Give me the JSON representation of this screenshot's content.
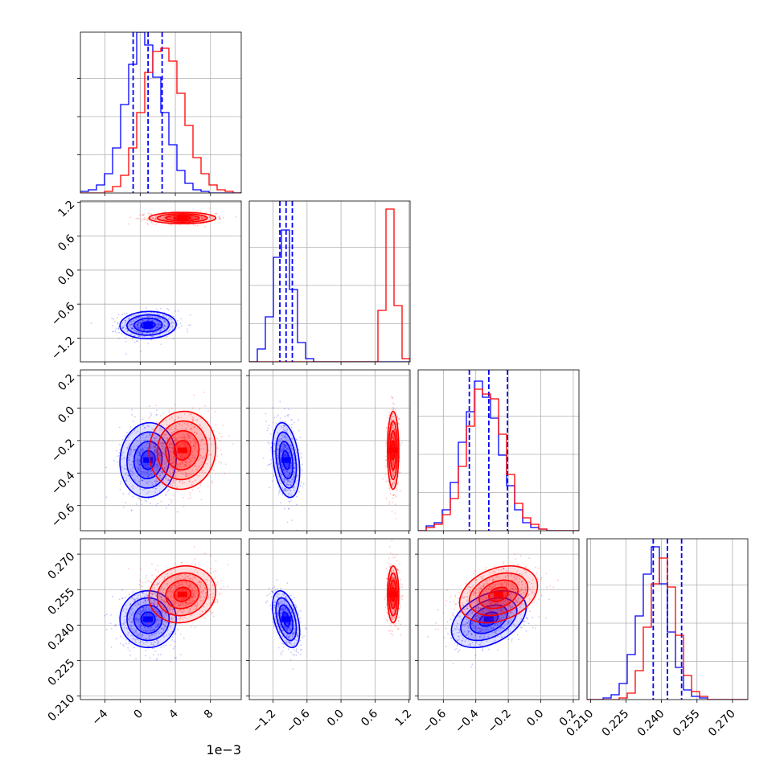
{
  "chart_data": {
    "type": "corner",
    "parameters": [
      {
        "id": "p0",
        "label": "",
        "range": [
          -6.8,
          11.5
        ],
        "ticks": [
          -4,
          0,
          4,
          8
        ],
        "tick_labels": [
          "−4",
          "0",
          "4",
          "8"
        ],
        "offset_text": "1e−3"
      },
      {
        "id": "p1",
        "label": "",
        "range": [
          -1.62,
          1.22
        ],
        "ticks": [
          -1.2,
          -0.6,
          0.0,
          0.6,
          1.2
        ],
        "tick_labels": [
          "−1.2",
          "−0.6",
          "0.0",
          "0.6",
          "1.2"
        ]
      },
      {
        "id": "p2",
        "label": "",
        "range": [
          -0.755,
          0.235
        ],
        "ticks": [
          -0.6,
          -0.4,
          -0.2,
          0.0,
          0.2
        ],
        "tick_labels": [
          "−0.6",
          "−0.4",
          "−0.2",
          "0.0",
          "0.2"
        ]
      },
      {
        "id": "p3",
        "label": "",
        "range": [
          0.2085,
          0.2765
        ],
        "ticks": [
          0.21,
          0.225,
          0.24,
          0.255,
          0.27
        ],
        "tick_labels": [
          "0.210",
          "0.225",
          "0.240",
          "0.255",
          "0.270"
        ]
      }
    ],
    "series": [
      {
        "color": "#0000ff",
        "means": [
          0.9,
          -0.97,
          -0.32,
          0.2425
        ],
        "sigmas": [
          1.6,
          0.12,
          0.115,
          0.006
        ],
        "correlations": {
          "1-0": 0.05,
          "2-0": 0.05,
          "2-1": -0.3,
          "3-0": 0.0,
          "3-1": -0.45,
          "3-2": 0.4
        },
        "quantile_lines": [
          [
            -0.8,
            0.9,
            2.5
          ],
          [
            -1.08,
            -0.97,
            -0.86
          ],
          [
            -0.44,
            -0.32,
            -0.205
          ],
          [
            0.2365,
            0.2425,
            0.2485
          ]
        ],
        "histograms": [
          [
            0.01,
            0.02,
            0.05,
            0.12,
            0.28,
            0.55,
            0.8,
            1.0,
            0.92,
            0.72,
            0.5,
            0.3,
            0.14,
            0.06,
            0.02,
            0.01,
            0,
            0,
            0,
            0
          ],
          [
            0,
            0.08,
            0.28,
            0.65,
            0.82,
            0.45,
            0.12,
            0.02,
            0,
            0,
            0,
            0,
            0,
            0,
            0,
            0,
            0,
            0,
            0,
            0
          ],
          [
            0,
            0.03,
            0.05,
            0.13,
            0.3,
            0.55,
            0.74,
            0.93,
            0.83,
            0.7,
            0.47,
            0.28,
            0.13,
            0.05,
            0.02,
            0.01,
            0,
            0,
            0,
            0
          ],
          [
            0,
            0,
            0.01,
            0.03,
            0.1,
            0.28,
            0.52,
            0.78,
            0.95,
            0.72,
            0.42,
            0.2,
            0.06,
            0.02,
            0.01,
            0,
            0,
            0,
            0,
            0
          ]
        ]
      },
      {
        "color": "#ff0000",
        "means": [
          4.8,
          0.92,
          -0.26,
          0.253
        ],
        "sigmas": [
          1.9,
          0.05,
          0.12,
          0.006
        ],
        "correlations": {
          "1-0": 0.0,
          "2-0": 0.05,
          "2-1": 0.0,
          "3-0": 0.1,
          "3-1": 0.0,
          "3-2": 0.3
        },
        "quantile_lines": null,
        "histograms": [
          [
            0,
            0,
            0,
            0.01,
            0.04,
            0.11,
            0.28,
            0.5,
            0.75,
            0.88,
            0.9,
            0.82,
            0.62,
            0.42,
            0.22,
            0.12,
            0.05,
            0.02,
            0.01,
            0
          ],
          [
            0,
            0,
            0,
            0,
            0,
            0,
            0,
            0,
            0,
            0,
            0,
            0,
            0,
            0,
            0,
            0,
            0.32,
            0.95,
            0.35,
            0.02
          ],
          [
            0,
            0.02,
            0.04,
            0.1,
            0.2,
            0.4,
            0.65,
            0.88,
            0.85,
            0.82,
            0.6,
            0.35,
            0.17,
            0.08,
            0.04,
            0.01,
            0,
            0,
            0,
            0
          ],
          [
            0,
            0,
            0,
            0,
            0.01,
            0.04,
            0.18,
            0.45,
            0.72,
            0.88,
            0.7,
            0.4,
            0.15,
            0.05,
            0.02,
            0,
            0,
            0,
            0,
            0
          ]
        ]
      }
    ],
    "contour_levels_sigma": [
      0.5,
      1.0,
      1.5,
      2.0
    ],
    "grid": true,
    "scatter_points": true
  }
}
